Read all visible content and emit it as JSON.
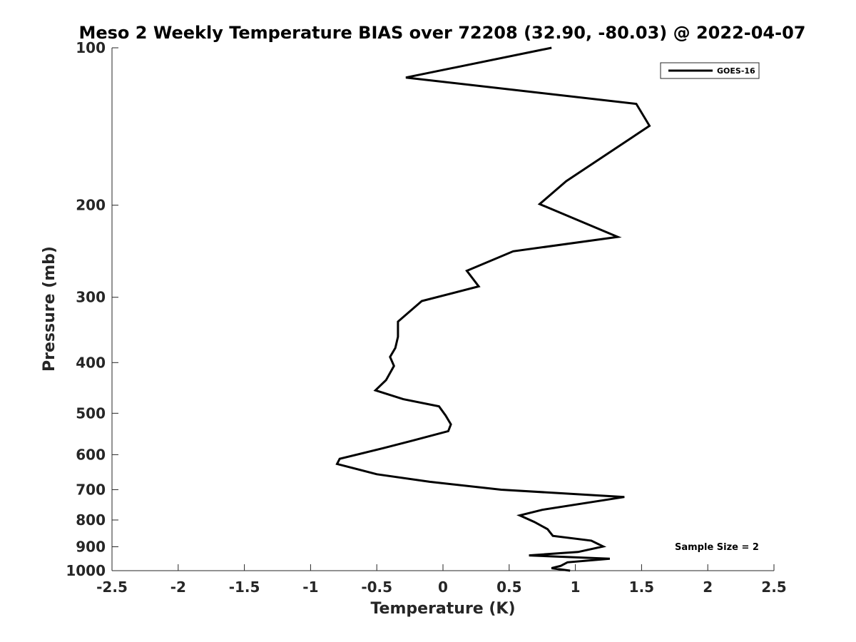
{
  "chart_data": {
    "type": "line",
    "title": "Meso 2 Weekly Temperature BIAS over 72208 (32.90, -80.03) @ 2022-04-07",
    "xlabel": "Temperature (K)",
    "ylabel": "Pressure (mb)",
    "xlim": [
      -2.5,
      2.5
    ],
    "ylim": [
      100,
      1000
    ],
    "y_scale": "log",
    "y_reversed": true,
    "x_ticks": [
      "-2.5",
      "-2",
      "-1.5",
      "-1",
      "-0.5",
      "0",
      "0.5",
      "1",
      "1.5",
      "2",
      "2.5"
    ],
    "x_tick_values": [
      -2.5,
      -2,
      -1.5,
      -1,
      -0.5,
      0,
      0.5,
      1,
      1.5,
      2,
      2.5
    ],
    "y_ticks": [
      "100",
      "200",
      "300",
      "400",
      "500",
      "600",
      "700",
      "800",
      "900",
      "1000"
    ],
    "y_tick_values": [
      100,
      200,
      300,
      400,
      500,
      600,
      700,
      800,
      900,
      1000
    ],
    "grid": false,
    "legend_position": "top-right",
    "annotation": "Sample Size = 2",
    "line_color": "#000000",
    "series": [
      {
        "name": "GOES-16",
        "x": [
          0.82,
          -0.28,
          1.46,
          1.56,
          0.93,
          0.73,
          1.32,
          0.53,
          0.18,
          0.27,
          -0.16,
          -0.34,
          -0.34,
          -0.36,
          -0.4,
          -0.37,
          -0.43,
          -0.51,
          -0.3,
          -0.03,
          0.02,
          0.06,
          0.04,
          -0.23,
          -0.45,
          -0.78,
          -0.8,
          -0.5,
          -0.1,
          0.44,
          1.37,
          0.75,
          0.58,
          0.69,
          0.79,
          0.83,
          1.12,
          1.21,
          1.02,
          0.65,
          1.26,
          0.94,
          0.89,
          0.82,
          0.96
        ],
        "y": [
          100,
          114,
          128,
          141,
          180,
          199,
          230,
          245,
          267,
          286,
          305,
          334,
          357,
          375,
          390,
          406,
          432,
          452,
          470,
          485,
          505,
          525,
          541,
          564,
          583,
          611,
          625,
          654,
          676,
          700,
          723,
          765,
          784,
          807,
          833,
          858,
          876,
          899,
          921,
          935,
          949,
          964,
          979,
          989,
          1000
        ]
      }
    ]
  }
}
